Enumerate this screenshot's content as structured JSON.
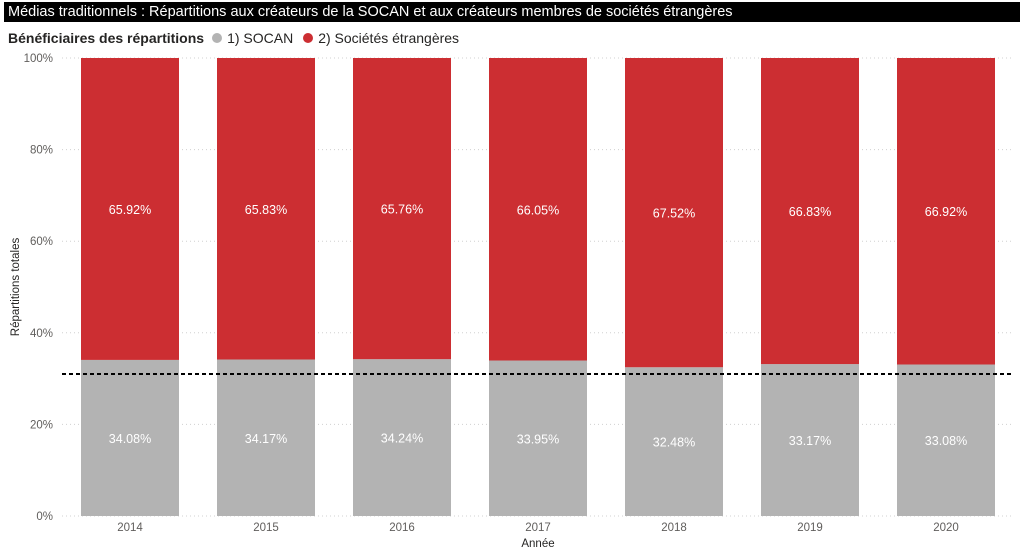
{
  "title": "Médias traditionnels : Répartitions aux créateurs de la SOCAN et aux créateurs membres de sociétés étrangères",
  "chart_data": {
    "type": "bar",
    "stacked": true,
    "percent_stacked": true,
    "categories": [
      "2014",
      "2015",
      "2016",
      "2017",
      "2018",
      "2019",
      "2020"
    ],
    "series": [
      {
        "name": "1) SOCAN",
        "color": "#b3b3b3",
        "values": [
          34.08,
          34.17,
          34.24,
          33.95,
          32.48,
          33.17,
          33.08
        ],
        "labels": [
          "34.08%",
          "34.17%",
          "34.24%",
          "33.95%",
          "32.48%",
          "33.17%",
          "33.08%"
        ]
      },
      {
        "name": "2) Sociétés étrangères",
        "color": "#cc2e32",
        "values": [
          65.92,
          65.83,
          65.76,
          66.05,
          67.52,
          66.83,
          66.92
        ],
        "labels": [
          "65.92%",
          "65.83%",
          "65.76%",
          "66.05%",
          "67.52%",
          "66.83%",
          "66.92%"
        ]
      }
    ],
    "legend_title": "Bénéficiaires des répartitions",
    "legend_position": "top-left",
    "xlabel": "Année",
    "ylabel": "Répartitions totales",
    "ylim": [
      0,
      100
    ],
    "yticks": [
      "0%",
      "20%",
      "40%",
      "60%",
      "80%",
      "100%"
    ],
    "ytick_values": [
      0,
      20,
      40,
      60,
      80,
      100
    ],
    "gridlines": "dotted horizontal",
    "reference_line": {
      "style": "dashed",
      "color": "#000000",
      "value": 31
    }
  }
}
